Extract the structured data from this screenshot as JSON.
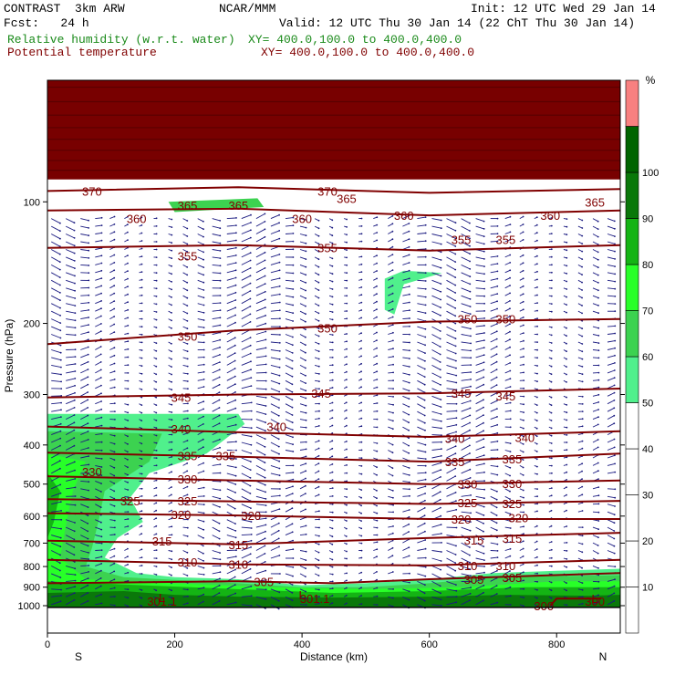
{
  "header": {
    "model": "CONTRAST  3km ARW",
    "center": "NCAR/MMM",
    "fcst": "Fcst:   24 h",
    "init": "Init: 12 UTC Wed 29 Jan 14",
    "valid": "Valid: 12 UTC Thu 30 Jan 14 (22 ChT Thu 30 Jan 14)",
    "field1": "Relative humidity (w.r.t. water)",
    "field1_xy": "XY= 400.0,100.0 to 400.0,400.0",
    "field2": "Potential temperature",
    "field2_xy": "XY= 400.0,100.0 to 400.0,400.0",
    "colors": {
      "field1": "#1a8a1a",
      "field2": "#800000"
    }
  },
  "chart_data": {
    "type": "heatmap",
    "title": "",
    "xlabel": "Distance (km)",
    "ylabel": "Pressure (hPa)",
    "xlim": [
      0,
      900
    ],
    "ylim": [
      1010,
      50
    ],
    "y_scale": "log",
    "x_ticks": [
      "0",
      "200",
      "400",
      "600",
      "800"
    ],
    "x_tick_values": [
      0,
      200,
      400,
      600,
      800
    ],
    "y_ticks": [
      "100",
      "200",
      "300",
      "400",
      "500",
      "600",
      "700",
      "800",
      "900",
      "1000"
    ],
    "y_tick_values": [
      100,
      200,
      300,
      400,
      500,
      600,
      700,
      800,
      900,
      1000
    ],
    "end_labels": {
      "left": "S",
      "right": "N"
    },
    "colorbar": {
      "unit": "%",
      "labels": [
        "10",
        "20",
        "30",
        "40",
        "50",
        "60",
        "70",
        "80",
        "90",
        "100"
      ],
      "levels": [
        0,
        10,
        20,
        30,
        40,
        50,
        60,
        70,
        80,
        90,
        100,
        110
      ],
      "colors": [
        "#ffffff",
        "#ffffff",
        "#ffffff",
        "#ffffff",
        "#ffffff",
        "#50f08c",
        "#3cd250",
        "#28ff28",
        "#14b414",
        "#0a780a",
        "#006400",
        "#f88080"
      ]
    },
    "rh_regions": [
      {
        "level": "50",
        "color": "#50f08c",
        "points": [
          [
            0,
            335
          ],
          [
            300,
            335
          ],
          [
            310,
            355
          ],
          [
            250,
            420
          ],
          [
            160,
            470
          ],
          [
            130,
            540
          ],
          [
            150,
            620
          ],
          [
            110,
            680
          ],
          [
            90,
            760
          ],
          [
            140,
            830
          ],
          [
            200,
            850
          ],
          [
            300,
            860
          ],
          [
            400,
            890
          ],
          [
            500,
            880
          ],
          [
            600,
            860
          ],
          [
            700,
            830
          ],
          [
            800,
            820
          ],
          [
            900,
            810
          ],
          [
            900,
            1010
          ],
          [
            0,
            1010
          ]
        ]
      },
      {
        "level": "60",
        "color": "#3cd250",
        "points": [
          [
            0,
            370
          ],
          [
            180,
            375
          ],
          [
            160,
            440
          ],
          [
            90,
            520
          ],
          [
            80,
            620
          ],
          [
            70,
            720
          ],
          [
            60,
            800
          ],
          [
            120,
            850
          ],
          [
            300,
            880
          ],
          [
            400,
            900
          ],
          [
            500,
            900
          ],
          [
            600,
            880
          ],
          [
            700,
            850
          ],
          [
            900,
            840
          ],
          [
            900,
            1010
          ],
          [
            0,
            1010
          ]
        ]
      },
      {
        "level": "70",
        "color": "#28ff28",
        "points": [
          [
            0,
            420
          ],
          [
            60,
            440
          ],
          [
            40,
            520
          ],
          [
            30,
            620
          ],
          [
            20,
            760
          ],
          [
            60,
            860
          ],
          [
            200,
            880
          ],
          [
            350,
            900
          ],
          [
            500,
            910
          ],
          [
            650,
            900
          ],
          [
            800,
            870
          ],
          [
            900,
            870
          ],
          [
            900,
            1010
          ],
          [
            0,
            1010
          ]
        ]
      },
      {
        "level": "80",
        "color": "#14b414",
        "points": [
          [
            0,
            470
          ],
          [
            20,
            520
          ],
          [
            10,
            620
          ],
          [
            0,
            680
          ],
          [
            0,
            870
          ],
          [
            150,
            890
          ],
          [
            300,
            910
          ],
          [
            450,
            930
          ],
          [
            600,
            920
          ],
          [
            750,
            900
          ],
          [
            900,
            900
          ],
          [
            900,
            1010
          ],
          [
            0,
            1010
          ]
        ]
      },
      {
        "level": "90",
        "color": "#0a780a",
        "points": [
          [
            0,
            930
          ],
          [
            120,
            920
          ],
          [
            200,
            940
          ],
          [
            300,
            950
          ],
          [
            450,
            955
          ],
          [
            600,
            950
          ],
          [
            720,
            940
          ],
          [
            850,
            945
          ],
          [
            900,
            940
          ],
          [
            900,
            1010
          ],
          [
            0,
            1010
          ]
        ]
      },
      {
        "level": "50",
        "color": "#50f08c",
        "points": [
          [
            530,
            155
          ],
          [
            560,
            148
          ],
          [
            620,
            150
          ],
          [
            560,
            160
          ],
          [
            545,
            190
          ],
          [
            530,
            185
          ]
        ]
      },
      {
        "level": "60",
        "color": "#3cd250",
        "points": [
          [
            190,
            100
          ],
          [
            330,
            98
          ],
          [
            340,
            103
          ],
          [
            200,
            106
          ]
        ]
      }
    ],
    "stratosphere_top": {
      "color": "#780000",
      "from": 50,
      "to": 88
    },
    "theta_lines": [
      {
        "label": "370",
        "points": [
          [
            0,
            94
          ],
          [
            300,
            92
          ],
          [
            600,
            95
          ],
          [
            900,
            93
          ]
        ]
      },
      {
        "label": "360",
        "points": [
          [
            0,
            105
          ],
          [
            300,
            104
          ],
          [
            600,
            108
          ],
          [
            900,
            105
          ]
        ]
      },
      {
        "label": "355",
        "points": [
          [
            0,
            130
          ],
          [
            300,
            128
          ],
          [
            600,
            132
          ],
          [
            900,
            128
          ]
        ]
      },
      {
        "label": "350",
        "points": [
          [
            0,
            225
          ],
          [
            300,
            208
          ],
          [
            600,
            198
          ],
          [
            900,
            195
          ]
        ]
      },
      {
        "label": "345",
        "points": [
          [
            0,
            305
          ],
          [
            300,
            300
          ],
          [
            600,
            298
          ],
          [
            900,
            290
          ]
        ]
      },
      {
        "label": "340",
        "points": [
          [
            0,
            360
          ],
          [
            300,
            372
          ],
          [
            600,
            382
          ],
          [
            900,
            370
          ]
        ]
      },
      {
        "label": "335",
        "points": [
          [
            0,
            418
          ],
          [
            300,
            428
          ],
          [
            600,
            440
          ],
          [
            900,
            420
          ]
        ]
      },
      {
        "label": "330",
        "points": [
          [
            0,
            478
          ],
          [
            300,
            490
          ],
          [
            600,
            500
          ],
          [
            900,
            490
          ]
        ]
      },
      {
        "label": "325",
        "points": [
          [
            0,
            545
          ],
          [
            300,
            552
          ],
          [
            600,
            560
          ],
          [
            900,
            550
          ]
        ]
      },
      {
        "label": "320",
        "points": [
          [
            0,
            590
          ],
          [
            300,
            598
          ],
          [
            600,
            610
          ],
          [
            900,
            610
          ]
        ]
      },
      {
        "label": "315",
        "points": [
          [
            0,
            690
          ],
          [
            300,
            705
          ],
          [
            600,
            680
          ],
          [
            900,
            660
          ]
        ]
      },
      {
        "label": "310",
        "points": [
          [
            0,
            770
          ],
          [
            300,
            790
          ],
          [
            600,
            795
          ],
          [
            900,
            770
          ]
        ]
      },
      {
        "label": "305",
        "points": [
          [
            0,
            880
          ],
          [
            300,
            870
          ],
          [
            450,
            880
          ],
          [
            600,
            860
          ],
          [
            900,
            830
          ]
        ]
      },
      {
        "label": "300",
        "points": [
          [
            790,
            1000
          ],
          [
            800,
            960
          ],
          [
            870,
            960
          ]
        ]
      }
    ],
    "theta_labels": [
      {
        "text": "370",
        "x": 70,
        "p": 94
      },
      {
        "text": "365",
        "x": 220,
        "p": 102
      },
      {
        "text": "365",
        "x": 300,
        "p": 102
      },
      {
        "text": "360",
        "x": 140,
        "p": 110
      },
      {
        "text": "360",
        "x": 400,
        "p": 110
      },
      {
        "text": "370",
        "x": 440,
        "p": 94
      },
      {
        "text": "365",
        "x": 470,
        "p": 98
      },
      {
        "text": "360",
        "x": 560,
        "p": 108
      },
      {
        "text": "360",
        "x": 790,
        "p": 108
      },
      {
        "text": "365",
        "x": 860,
        "p": 100
      },
      {
        "text": "355",
        "x": 220,
        "p": 136
      },
      {
        "text": "355",
        "x": 440,
        "p": 130
      },
      {
        "text": "355",
        "x": 650,
        "p": 124
      },
      {
        "text": "355",
        "x": 720,
        "p": 124
      },
      {
        "text": "350",
        "x": 220,
        "p": 215
      },
      {
        "text": "350",
        "x": 440,
        "p": 205
      },
      {
        "text": "350",
        "x": 660,
        "p": 195
      },
      {
        "text": "350",
        "x": 720,
        "p": 195
      },
      {
        "text": "345",
        "x": 210,
        "p": 305
      },
      {
        "text": "345",
        "x": 430,
        "p": 298
      },
      {
        "text": "345",
        "x": 650,
        "p": 298
      },
      {
        "text": "345",
        "x": 720,
        "p": 302
      },
      {
        "text": "340",
        "x": 210,
        "p": 365
      },
      {
        "text": "340",
        "x": 360,
        "p": 360
      },
      {
        "text": "340",
        "x": 640,
        "p": 385
      },
      {
        "text": "340",
        "x": 750,
        "p": 383
      },
      {
        "text": "335",
        "x": 220,
        "p": 425
      },
      {
        "text": "335",
        "x": 280,
        "p": 425
      },
      {
        "text": "335",
        "x": 640,
        "p": 440
      },
      {
        "text": "335",
        "x": 730,
        "p": 433
      },
      {
        "text": "330",
        "x": 70,
        "p": 465
      },
      {
        "text": "330",
        "x": 220,
        "p": 485
      },
      {
        "text": "330",
        "x": 660,
        "p": 500
      },
      {
        "text": "330",
        "x": 730,
        "p": 498
      },
      {
        "text": "325",
        "x": 130,
        "p": 550
      },
      {
        "text": "325",
        "x": 220,
        "p": 550
      },
      {
        "text": "325",
        "x": 660,
        "p": 555
      },
      {
        "text": "325",
        "x": 730,
        "p": 558
      },
      {
        "text": "320",
        "x": 210,
        "p": 595
      },
      {
        "text": "320",
        "x": 320,
        "p": 598
      },
      {
        "text": "320",
        "x": 650,
        "p": 610
      },
      {
        "text": "320",
        "x": 740,
        "p": 605
      },
      {
        "text": "315",
        "x": 180,
        "p": 692
      },
      {
        "text": "315",
        "x": 300,
        "p": 705
      },
      {
        "text": "315",
        "x": 670,
        "p": 688
      },
      {
        "text": "315",
        "x": 730,
        "p": 680
      },
      {
        "text": "310",
        "x": 220,
        "p": 780
      },
      {
        "text": "310",
        "x": 300,
        "p": 790
      },
      {
        "text": "310",
        "x": 660,
        "p": 795
      },
      {
        "text": "310",
        "x": 720,
        "p": 795
      },
      {
        "text": "305",
        "x": 340,
        "p": 872
      },
      {
        "text": "305",
        "x": 670,
        "p": 860
      },
      {
        "text": "305",
        "x": 730,
        "p": 850
      },
      {
        "text": "300",
        "x": 780,
        "p": 1000
      },
      {
        "text": "300",
        "x": 860,
        "p": 975
      }
    ],
    "low_markers": [
      {
        "text": "L",
        "x": 180,
        "p": 955
      },
      {
        "text": "301.1",
        "x": 180,
        "p": 975
      },
      {
        "text": "L",
        "x": 400,
        "p": 940
      },
      {
        "text": "301.1",
        "x": 420,
        "p": 960
      },
      {
        "text": "L",
        "x": 860,
        "p": 960
      }
    ]
  }
}
